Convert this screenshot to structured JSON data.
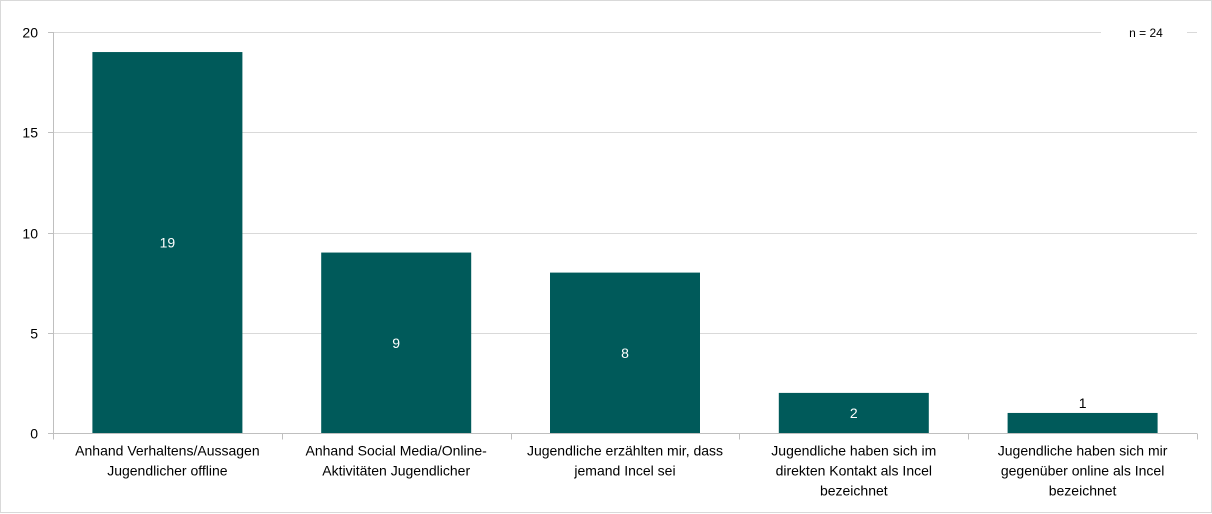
{
  "chart_data": {
    "type": "bar",
    "categories": [
      [
        "Anhand Verhaltens/Aussagen",
        "Jugendlicher offline"
      ],
      [
        "Anhand Social Media/Online-",
        "Aktivitäten Jugendlicher"
      ],
      [
        "Jugendliche erzählten mir, dass",
        "jemand Incel sei"
      ],
      [
        "Jugendliche haben sich im",
        "direkten Kontakt als Incel",
        "bezeichnet"
      ],
      [
        "Jugendliche haben sich mir",
        "gegenüber online als Incel",
        "bezeichnet"
      ]
    ],
    "values": [
      19,
      9,
      8,
      2,
      1
    ],
    "data_labels": [
      "19",
      "9",
      "8",
      "2",
      "1"
    ],
    "ylim": [
      0,
      20
    ],
    "yticks": [
      0,
      5,
      10,
      15,
      20
    ],
    "grid": true,
    "legend": "none",
    "annotation": "n = 24",
    "title": "",
    "xlabel": "",
    "ylabel": "",
    "colors": {
      "bar": "#005a5a",
      "grid": "#d9d9d9",
      "axis": "#bfbfbf",
      "label_inside": "#ffffff",
      "label_outside": "#000000"
    }
  }
}
